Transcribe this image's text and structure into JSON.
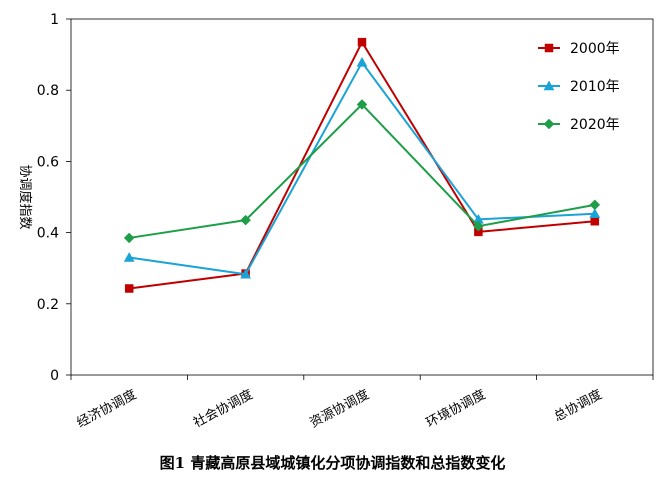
{
  "caption": "图1  青藏高原县域城镇化分项协调指数和总指数变化",
  "chart_data": {
    "type": "line",
    "title": "",
    "xlabel": "",
    "ylabel": "协调度指数",
    "ylim": [
      0,
      1
    ],
    "yticks": [
      0,
      0.2,
      0.4,
      0.6,
      0.8,
      1
    ],
    "ytick_labels": [
      "0",
      "0.2",
      "0.4",
      "0.6",
      "0.8",
      "1"
    ],
    "categories": [
      "经济协调度",
      "社会协调度",
      "资源协调度",
      "环境协调度",
      "总协调度"
    ],
    "legend_position": "top-right",
    "grid": false,
    "series": [
      {
        "name": "2000年",
        "color": "#c00000",
        "marker": "square",
        "values": [
          0.243,
          0.285,
          0.935,
          0.402,
          0.432
        ]
      },
      {
        "name": "2010年",
        "color": "#1aa3d6",
        "marker": "triangle",
        "values": [
          0.33,
          0.283,
          0.878,
          0.437,
          0.453
        ]
      },
      {
        "name": "2020年",
        "color": "#1e9e48",
        "marker": "diamond",
        "values": [
          0.385,
          0.435,
          0.76,
          0.418,
          0.478
        ]
      }
    ]
  }
}
